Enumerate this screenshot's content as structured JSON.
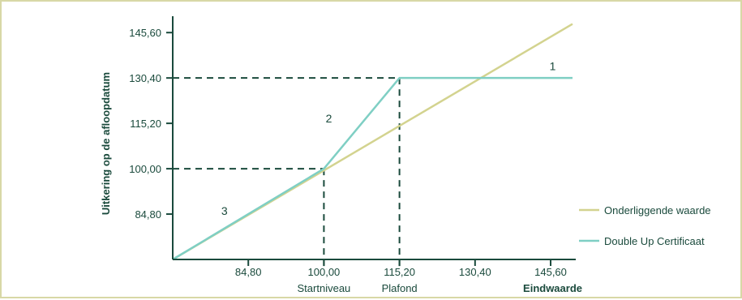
{
  "chart_data": {
    "type": "line",
    "ylabel": "Uitkering op de afloopdatum",
    "xlabel": "Eindwaarde",
    "x_ticks": [
      84.8,
      100.0,
      115.2,
      130.4,
      145.6
    ],
    "x_tick_labels": [
      "84,80",
      "100,00",
      "115,20",
      "130,40",
      "145,60"
    ],
    "y_ticks": [
      84.8,
      100.0,
      115.2,
      130.4,
      145.6
    ],
    "y_tick_labels": [
      "84,80",
      "100,00",
      "115,20",
      "130,40",
      "145,60"
    ],
    "xlim": [
      69.6,
      150.0
    ],
    "ylim": [
      69.6,
      150.0
    ],
    "x_sub_labels": [
      {
        "x": 100.0,
        "text": "Startniveau"
      },
      {
        "x": 115.2,
        "text": "Plafond"
      }
    ],
    "series": [
      {
        "name": "Onderliggende waarde",
        "color": "#d3d38f",
        "x": [
          69.6,
          150.0
        ],
        "y": [
          69.6,
          148.5
        ]
      },
      {
        "name": "Double Up Certificaat",
        "color": "#7fcfc4",
        "x": [
          69.6,
          100.0,
          115.2,
          150.0
        ],
        "y": [
          69.6,
          100.0,
          130.4,
          130.4
        ]
      }
    ],
    "reference_lines": [
      {
        "x": 100.0,
        "y": 100.0
      },
      {
        "x": 115.2,
        "y": 130.4
      }
    ],
    "annotations": [
      {
        "text": "1",
        "x": 146.0,
        "y": 133.0
      },
      {
        "text": "2",
        "x": 101.0,
        "y": 115.5
      },
      {
        "text": "3",
        "x": 80.0,
        "y": 84.5
      }
    ],
    "legend_position": "right",
    "grid": false
  },
  "colors": {
    "axis": "#1a4a3c",
    "text": "#1a4a3c",
    "border": "#d8d8a6"
  }
}
